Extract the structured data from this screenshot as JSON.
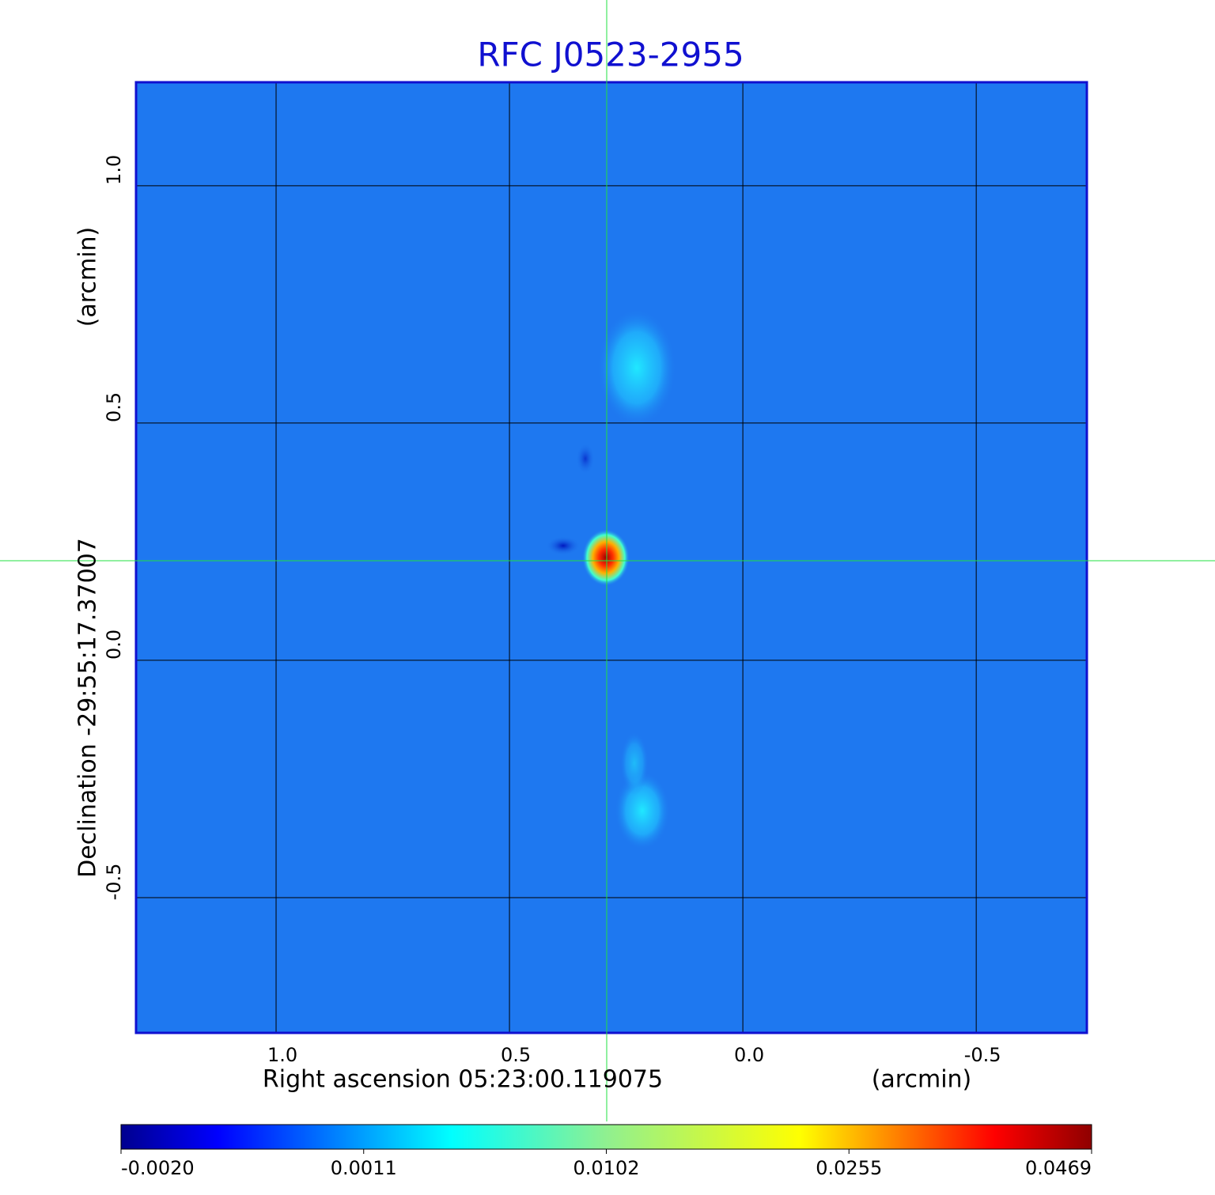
{
  "chart_data": {
    "type": "image",
    "title": "RFC J0523-2955",
    "x_label": "Right ascension  05:23:00.119075",
    "x_unit": "(arcmin)",
    "y_label": "Declination  -29:55:17.37007",
    "y_unit": "(arcmin)",
    "xlim": [
      1.3,
      -0.737
    ],
    "ylim": [
      -0.785,
      1.218
    ],
    "xticks": [
      {
        "value": 1,
        "label": "1.0"
      },
      {
        "value": 0.5,
        "label": "0.5"
      },
      {
        "value": 0,
        "label": "0.0"
      },
      {
        "value": -0.5,
        "label": "-0.5"
      }
    ],
    "yticks": [
      {
        "value": 1,
        "label": "1.0"
      },
      {
        "value": 0.5,
        "label": "0.5"
      },
      {
        "value": 0,
        "label": "0.0"
      },
      {
        "value": -0.5,
        "label": "-0.5"
      }
    ],
    "grid": true,
    "colorbar": {
      "colormap": "jet",
      "ticks": [
        {
          "value": -0.002,
          "label": "-0.0020"
        },
        0.0011,
        0.0102,
        0.0255,
        0.0469
      ]
    }
  }
}
